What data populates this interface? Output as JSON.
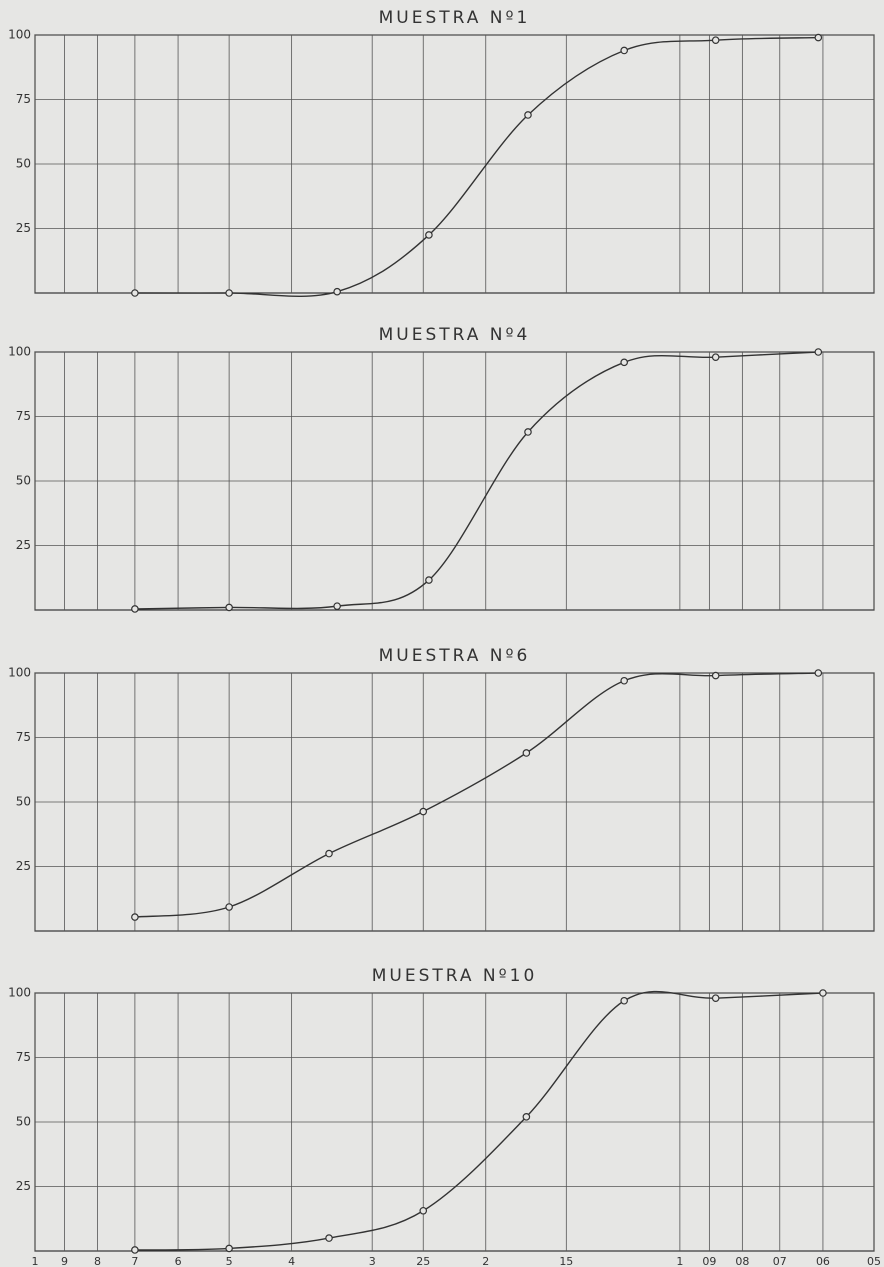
{
  "chart_data": [
    {
      "type": "line",
      "title": "MUESTRA Nº1",
      "x": [
        7,
        5,
        3.4,
        2.45,
        1.72,
        1.22,
        0.88,
        0.61
      ],
      "values": [
        0,
        0,
        0.5,
        22.5,
        69,
        94,
        98,
        99
      ],
      "xlim": [
        10,
        0.5
      ],
      "log_x": true,
      "ylim": [
        0,
        100
      ],
      "yticks": [
        25,
        50,
        75,
        100
      ],
      "color": "#333333",
      "grid": true
    },
    {
      "type": "line",
      "title": "MUESTRA Nº4",
      "x": [
        7,
        5,
        3.4,
        2.45,
        1.72,
        1.22,
        0.88,
        0.61
      ],
      "values": [
        0.4,
        1,
        1.5,
        11.6,
        69,
        96,
        98,
        100
      ],
      "xlim": [
        10,
        0.5
      ],
      "log_x": true,
      "ylim": [
        0,
        100
      ],
      "yticks": [
        25,
        50,
        75,
        100
      ],
      "color": "#333333",
      "grid": true
    },
    {
      "type": "line",
      "title": "MUESTRA Nº6",
      "x": [
        7,
        5,
        3.5,
        2.5,
        1.73,
        1.22,
        0.88,
        0.61
      ],
      "values": [
        5.4,
        9.3,
        30,
        46.3,
        69,
        97,
        99,
        100
      ],
      "xlim": [
        10,
        0.5
      ],
      "log_x": true,
      "ylim": [
        0,
        100
      ],
      "yticks": [
        25,
        50,
        75,
        100
      ],
      "color": "#333333",
      "grid": true
    },
    {
      "type": "line",
      "title": "MUESTRA Nº10",
      "x": [
        7,
        5,
        3.5,
        2.5,
        1.73,
        1.22,
        0.88,
        0.6
      ],
      "values": [
        0.4,
        1,
        5,
        15.6,
        52,
        97,
        98,
        100
      ],
      "xlim": [
        10,
        0.5
      ],
      "log_x": true,
      "ylim": [
        0,
        100
      ],
      "yticks": [
        25,
        50,
        75,
        100
      ],
      "color": "#333333",
      "grid": true,
      "xticks": [
        {
          "value": 10,
          "label": "1"
        },
        9,
        8,
        7,
        6,
        5,
        4,
        3,
        {
          "value": 2.5,
          "label": "25"
        },
        2,
        {
          "value": 1.5,
          "label": "15"
        },
        1,
        {
          "value": 0.9,
          "label": "09"
        },
        {
          "value": 0.8,
          "label": "08"
        },
        {
          "value": 0.7,
          "label": "07"
        },
        {
          "value": 0.6,
          "label": "06"
        },
        {
          "value": 0.5,
          "label": "05"
        }
      ]
    }
  ]
}
